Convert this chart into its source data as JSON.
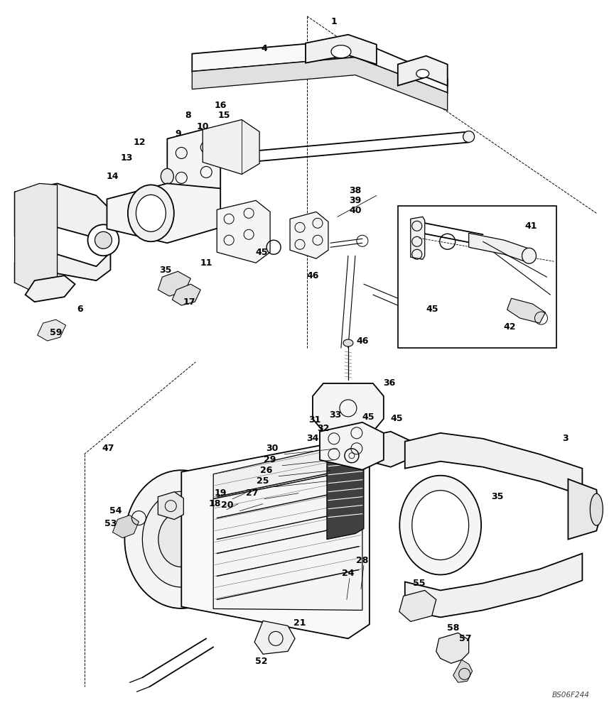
{
  "watermark": "BS06F244",
  "bg_color": "#ffffff",
  "fig_width": 8.64,
  "fig_height": 10.0,
  "dpi": 100,
  "lw": 0.9,
  "lw_thick": 1.3
}
